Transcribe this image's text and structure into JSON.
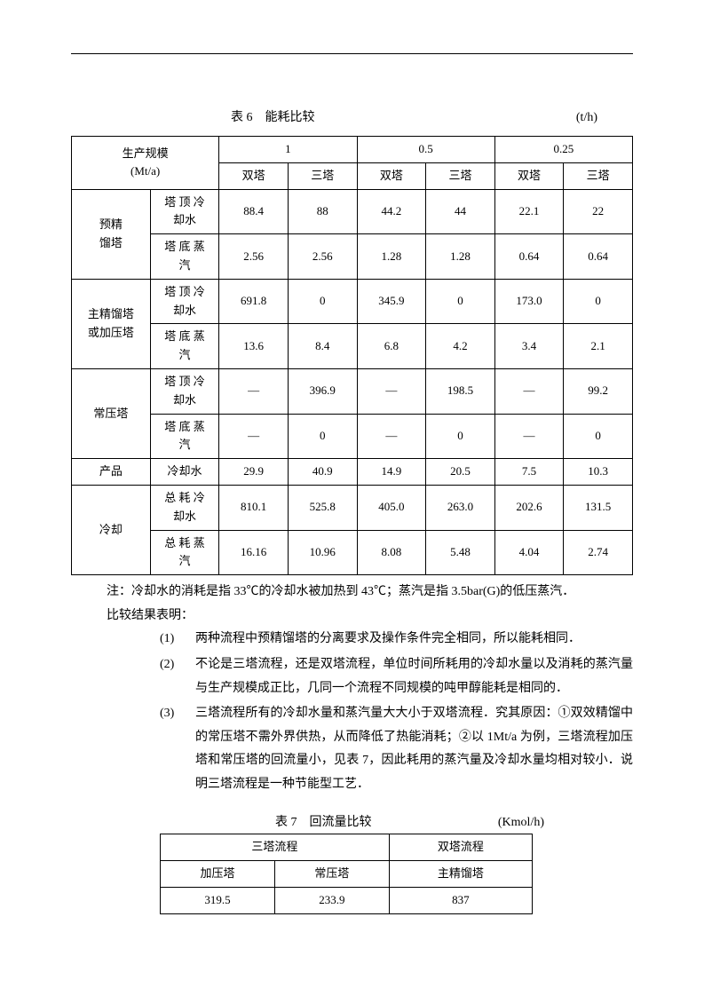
{
  "table6": {
    "title": "表 6　能耗比较",
    "unit": "(t/h)",
    "header": {
      "scale_label": "生产规模",
      "scale_unit": "(Mt/a)",
      "scales": [
        "1",
        "0.5",
        "0.25"
      ],
      "subcols": [
        "双塔",
        "三塔",
        "双塔",
        "三塔",
        "双塔",
        "三塔"
      ]
    },
    "groups": [
      {
        "name_l1": "预精",
        "name_l2": "馏塔",
        "rows": [
          {
            "param_l1": "塔 顶 冷",
            "param_l2": "却水",
            "vals": [
              "88.4",
              "88",
              "44.2",
              "44",
              "22.1",
              "22"
            ]
          },
          {
            "param_l1": "塔 底 蒸",
            "param_l2": "汽",
            "vals": [
              "2.56",
              "2.56",
              "1.28",
              "1.28",
              "0.64",
              "0.64"
            ]
          }
        ]
      },
      {
        "name_l1": "主精馏塔",
        "name_l2": "或加压塔",
        "rows": [
          {
            "param_l1": "塔 顶 冷",
            "param_l2": "却水",
            "vals": [
              "691.8",
              "0",
              "345.9",
              "0",
              "173.0",
              "0"
            ]
          },
          {
            "param_l1": "塔 底 蒸",
            "param_l2": "汽",
            "vals": [
              "13.6",
              "8.4",
              "6.8",
              "4.2",
              "3.4",
              "2.1"
            ]
          }
        ]
      },
      {
        "name_l1": "",
        "name_l2": "常压塔",
        "rows": [
          {
            "param_l1": "塔 顶 冷",
            "param_l2": "却水",
            "vals": [
              "—",
              "396.9",
              "—",
              "198.5",
              "—",
              "99.2"
            ]
          },
          {
            "param_l1": "塔 底 蒸",
            "param_l2": "汽",
            "vals": [
              "—",
              "0",
              "—",
              "0",
              "—",
              "0"
            ]
          }
        ]
      },
      {
        "name_l1": "产品",
        "name_l2": "",
        "single": true,
        "rows": [
          {
            "param_l1": "冷却水",
            "param_l2": "",
            "vals": [
              "29.9",
              "40.9",
              "14.9",
              "20.5",
              "7.5",
              "10.3"
            ]
          }
        ]
      },
      {
        "name_l1": "",
        "name_l2": "冷却",
        "rows": [
          {
            "param_l1": "总 耗 冷",
            "param_l2": "却水",
            "vals": [
              "810.1",
              "525.8",
              "405.0",
              "263.0",
              "202.6",
              "131.5"
            ]
          },
          {
            "param_l1": "总 耗 蒸",
            "param_l2": "汽",
            "vals": [
              "16.16",
              "10.96",
              "8.08",
              "5.48",
              "4.04",
              "2.74"
            ]
          }
        ]
      }
    ]
  },
  "notes": {
    "line1": "注：冷却水的消耗是指 33℃的冷却水被加热到 43℃；蒸汽是指 3.5bar(G)的低压蒸汽．",
    "line2": "比较结果表明："
  },
  "list": [
    {
      "num": "(1)",
      "text": "两种流程中预精馏塔的分离要求及操作条件完全相同，所以能耗相同．"
    },
    {
      "num": "(2)",
      "text": "不论是三塔流程，还是双塔流程，单位时间所耗用的冷却水量以及消耗的蒸汽量与生产规模成正比，几同一个流程不同规模的吨甲醇能耗是相同的．"
    },
    {
      "num": "(3)",
      "text": "三塔流程所有的冷却水量和蒸汽量大大小于双塔流程．究其原因：①双效精馏中的常压塔不需外界供热，从而降低了热能消耗；②以 1Mt/a 为例，三塔流程加压塔和常压塔的回流量小，见表 7，因此耗用的蒸汽量及冷却水量均相对较小．说明三塔流程是一种节能型工艺．"
    }
  ],
  "table7": {
    "title": "表 7　回流量比较",
    "unit": "(Kmol/h)",
    "h1": [
      "三塔流程",
      "双塔流程"
    ],
    "h2": [
      "加压塔",
      "常压塔",
      "主精馏塔"
    ],
    "row": [
      "319.5",
      "233.9",
      "837"
    ]
  }
}
